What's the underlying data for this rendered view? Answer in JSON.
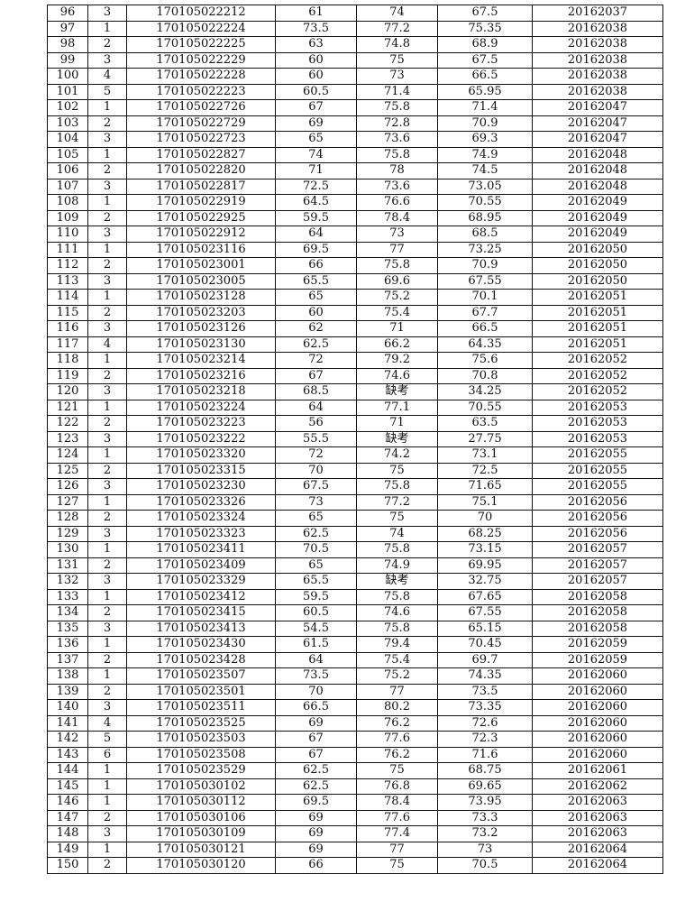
{
  "rows": [
    [
      "96",
      "3",
      "170105022212",
      "61",
      "74",
      "67.5",
      "20162037"
    ],
    [
      "97",
      "1",
      "170105022224",
      "73.5",
      "77.2",
      "75.35",
      "20162038"
    ],
    [
      "98",
      "2",
      "170105022225",
      "63",
      "74.8",
      "68.9",
      "20162038"
    ],
    [
      "99",
      "3",
      "170105022229",
      "60",
      "75",
      "67.5",
      "20162038"
    ],
    [
      "100",
      "4",
      "170105022228",
      "60",
      "73",
      "66.5",
      "20162038"
    ],
    [
      "101",
      "5",
      "170105022223",
      "60.5",
      "71.4",
      "65.95",
      "20162038"
    ],
    [
      "102",
      "1",
      "170105022726",
      "67",
      "75.8",
      "71.4",
      "20162047"
    ],
    [
      "103",
      "2",
      "170105022729",
      "69",
      "72.8",
      "70.9",
      "20162047"
    ],
    [
      "104",
      "3",
      "170105022723",
      "65",
      "73.6",
      "69.3",
      "20162047"
    ],
    [
      "105",
      "1",
      "170105022827",
      "74",
      "75.8",
      "74.9",
      "20162048"
    ],
    [
      "106",
      "2",
      "170105022820",
      "71",
      "78",
      "74.5",
      "20162048"
    ],
    [
      "107",
      "3",
      "170105022817",
      "72.5",
      "73.6",
      "73.05",
      "20162048"
    ],
    [
      "108",
      "1",
      "170105022919",
      "64.5",
      "76.6",
      "70.55",
      "20162049"
    ],
    [
      "109",
      "2",
      "170105022925",
      "59.5",
      "78.4",
      "68.95",
      "20162049"
    ],
    [
      "110",
      "3",
      "170105022912",
      "64",
      "73",
      "68.5",
      "20162049"
    ],
    [
      "111",
      "1",
      "170105023116",
      "69.5",
      "77",
      "73.25",
      "20162050"
    ],
    [
      "112",
      "2",
      "170105023001",
      "66",
      "75.8",
      "70.9",
      "20162050"
    ],
    [
      "113",
      "3",
      "170105023005",
      "65.5",
      "69.6",
      "67.55",
      "20162050"
    ],
    [
      "114",
      "1",
      "170105023128",
      "65",
      "75.2",
      "70.1",
      "20162051"
    ],
    [
      "115",
      "2",
      "170105023203",
      "60",
      "75.4",
      "67.7",
      "20162051"
    ],
    [
      "116",
      "3",
      "170105023126",
      "62",
      "71",
      "66.5",
      "20162051"
    ],
    [
      "117",
      "4",
      "170105023130",
      "62.5",
      "66.2",
      "64.35",
      "20162051"
    ],
    [
      "118",
      "1",
      "170105023214",
      "72",
      "79.2",
      "75.6",
      "20162052"
    ],
    [
      "119",
      "2",
      "170105023216",
      "67",
      "74.6",
      "70.8",
      "20162052"
    ],
    [
      "120",
      "3",
      "170105023218",
      "68.5",
      "缺考",
      "34.25",
      "20162052"
    ],
    [
      "121",
      "1",
      "170105023224",
      "64",
      "77.1",
      "70.55",
      "20162053"
    ],
    [
      "122",
      "2",
      "170105023223",
      "56",
      "71",
      "63.5",
      "20162053"
    ],
    [
      "123",
      "3",
      "170105023222",
      "55.5",
      "缺考",
      "27.75",
      "20162053"
    ],
    [
      "124",
      "1",
      "170105023320",
      "72",
      "74.2",
      "73.1",
      "20162055"
    ],
    [
      "125",
      "2",
      "170105023315",
      "70",
      "75",
      "72.5",
      "20162055"
    ],
    [
      "126",
      "3",
      "170105023230",
      "67.5",
      "75.8",
      "71.65",
      "20162055"
    ],
    [
      "127",
      "1",
      "170105023326",
      "73",
      "77.2",
      "75.1",
      "20162056"
    ],
    [
      "128",
      "2",
      "170105023324",
      "65",
      "75",
      "70",
      "20162056"
    ],
    [
      "129",
      "3",
      "170105023323",
      "62.5",
      "74",
      "68.25",
      "20162056"
    ],
    [
      "130",
      "1",
      "170105023411",
      "70.5",
      "75.8",
      "73.15",
      "20162057"
    ],
    [
      "131",
      "2",
      "170105023409",
      "65",
      "74.9",
      "69.95",
      "20162057"
    ],
    [
      "132",
      "3",
      "170105023329",
      "65.5",
      "缺考",
      "32.75",
      "20162057"
    ],
    [
      "133",
      "1",
      "170105023412",
      "59.5",
      "75.8",
      "67.65",
      "20162058"
    ],
    [
      "134",
      "2",
      "170105023415",
      "60.5",
      "74.6",
      "67.55",
      "20162058"
    ],
    [
      "135",
      "3",
      "170105023413",
      "54.5",
      "75.8",
      "65.15",
      "20162058"
    ],
    [
      "136",
      "1",
      "170105023430",
      "61.5",
      "79.4",
      "70.45",
      "20162059"
    ],
    [
      "137",
      "2",
      "170105023428",
      "64",
      "75.4",
      "69.7",
      "20162059"
    ],
    [
      "138",
      "1",
      "170105023507",
      "73.5",
      "75.2",
      "74.35",
      "20162060"
    ],
    [
      "139",
      "2",
      "170105023501",
      "70",
      "77",
      "73.5",
      "20162060"
    ],
    [
      "140",
      "3",
      "170105023511",
      "66.5",
      "80.2",
      "73.35",
      "20162060"
    ],
    [
      "141",
      "4",
      "170105023525",
      "69",
      "76.2",
      "72.6",
      "20162060"
    ],
    [
      "142",
      "5",
      "170105023503",
      "67",
      "77.6",
      "72.3",
      "20162060"
    ],
    [
      "143",
      "6",
      "170105023508",
      "67",
      "76.2",
      "71.6",
      "20162060"
    ],
    [
      "144",
      "1",
      "170105023529",
      "62.5",
      "75",
      "68.75",
      "20162061"
    ],
    [
      "145",
      "1",
      "170105030102",
      "62.5",
      "76.8",
      "69.65",
      "20162062"
    ],
    [
      "146",
      "1",
      "170105030112",
      "69.5",
      "78.4",
      "73.95",
      "20162063"
    ],
    [
      "147",
      "2",
      "170105030106",
      "69",
      "77.6",
      "73.3",
      "20162063"
    ],
    [
      "148",
      "3",
      "170105030109",
      "69",
      "77.4",
      "73.2",
      "20162063"
    ],
    [
      "149",
      "1",
      "170105030121",
      "69",
      "77",
      "73",
      "20162064"
    ],
    [
      "150",
      "2",
      "170105030120",
      "66",
      "75",
      "70.5",
      "20162064"
    ]
  ]
}
